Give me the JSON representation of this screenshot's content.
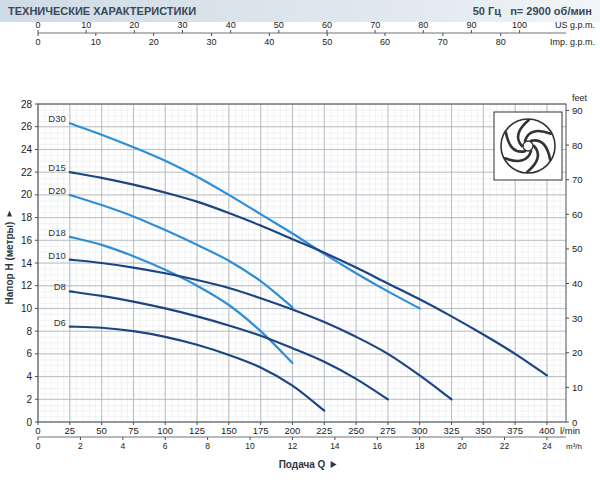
{
  "chart_data": {
    "type": "line",
    "title": "ТЕХНИЧЕСКИЕ ХАРАКТЕРИСТИКИ",
    "subtitle": "50 Гц   n= 2900 об/мин",
    "x_label": "Подача Q",
    "x_unit": "l/min",
    "y_label": "Напор H (метры)",
    "xlim": [
      0,
      415
    ],
    "xticks": [
      0,
      25,
      50,
      75,
      100,
      125,
      150,
      175,
      200,
      225,
      250,
      275,
      300,
      325,
      350,
      375,
      400
    ],
    "ylim": [
      0,
      28
    ],
    "yticks": [
      0,
      2,
      4,
      6,
      8,
      10,
      12,
      14,
      16,
      18,
      20,
      22,
      24,
      26,
      28
    ],
    "y2_label": "feet",
    "y2lim": [
      0,
      91.86
    ],
    "y2ticks": [
      0,
      10,
      20,
      30,
      40,
      50,
      60,
      70,
      80,
      90
    ],
    "x2_label": "US g.p.m.",
    "x2lim": [
      0,
      109.63
    ],
    "x2ticks": [
      0,
      10,
      20,
      30,
      40,
      50,
      60,
      70,
      80,
      90,
      100
    ],
    "x3_label": "Imp. g.p.m.",
    "x3lim": [
      0,
      91.29
    ],
    "x3ticks": [
      0,
      10,
      20,
      30,
      40,
      50,
      60,
      70,
      80
    ],
    "x4_label": "m³/h",
    "x4lim": [
      0,
      24.9
    ],
    "x4ticks": [
      0,
      2,
      4,
      6,
      8,
      10,
      12,
      14,
      16,
      18,
      20,
      22,
      24
    ],
    "grid": true,
    "series": [
      {
        "name": "D30",
        "color": "#2e8fd6",
        "x": [
          25,
          50,
          75,
          100,
          125,
          150,
          175,
          200,
          225,
          250,
          275,
          300
        ],
        "values": [
          26.3,
          25.3,
          24.2,
          23.0,
          21.6,
          20.0,
          18.3,
          16.6,
          14.8,
          13.1,
          11.5,
          10.0
        ]
      },
      {
        "name": "D15",
        "color": "#1c4584",
        "x": [
          25,
          50,
          75,
          100,
          125,
          150,
          175,
          200,
          225,
          250,
          275,
          300,
          325,
          350,
          375,
          400
        ],
        "values": [
          22.0,
          21.5,
          20.9,
          20.2,
          19.4,
          18.4,
          17.3,
          16.1,
          14.9,
          13.6,
          12.2,
          10.8,
          9.3,
          7.7,
          6.0,
          4.1
        ]
      },
      {
        "name": "D20",
        "color": "#2e8fd6",
        "x": [
          25,
          50,
          75,
          100,
          125,
          150,
          175,
          200
        ],
        "values": [
          20.0,
          19.1,
          18.1,
          16.9,
          15.6,
          14.2,
          12.4,
          10.1
        ]
      },
      {
        "name": "D18",
        "color": "#2e8fd6",
        "x": [
          25,
          50,
          75,
          100,
          125,
          150,
          175,
          200
        ],
        "values": [
          16.3,
          15.6,
          14.6,
          13.4,
          12.0,
          10.3,
          8.0,
          5.2
        ]
      },
      {
        "name": "D10",
        "color": "#1c4584",
        "x": [
          25,
          50,
          75,
          100,
          125,
          150,
          175,
          200,
          225,
          250,
          275,
          300,
          325
        ],
        "values": [
          14.3,
          14.0,
          13.6,
          13.1,
          12.5,
          11.8,
          10.9,
          9.9,
          8.8,
          7.5,
          6.0,
          4.1,
          2.0
        ]
      },
      {
        "name": "D8",
        "color": "#1c4584",
        "x": [
          25,
          50,
          75,
          100,
          125,
          150,
          175,
          200,
          225,
          250,
          275
        ],
        "values": [
          11.5,
          11.1,
          10.6,
          10.0,
          9.3,
          8.5,
          7.6,
          6.5,
          5.3,
          3.8,
          2.0
        ]
      },
      {
        "name": "D6",
        "color": "#1c4584",
        "x": [
          25,
          50,
          75,
          100,
          125,
          150,
          175,
          200,
          225
        ],
        "values": [
          8.4,
          8.3,
          8.0,
          7.5,
          6.8,
          5.9,
          4.8,
          3.2,
          1.0
        ]
      }
    ]
  }
}
